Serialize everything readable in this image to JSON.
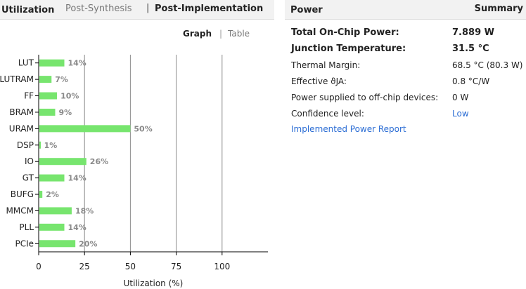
{
  "utilization": {
    "title": "Utilization",
    "tabs": {
      "post_synthesis": "Post-Synthesis",
      "separator": "|",
      "post_implementation": "Post-Implementation"
    },
    "view_toggle": {
      "graph": "Graph",
      "separator": "|",
      "table": "Table"
    }
  },
  "power": {
    "title": "Power",
    "summary": "Summary",
    "rows": [
      {
        "label": "Total On-Chip Power:",
        "value": "7.889 W"
      },
      {
        "label": "Junction Temperature:",
        "value": "31.5 °C"
      },
      {
        "label": "Thermal Margin:",
        "value": "68.5 °C (80.3 W)"
      },
      {
        "label": "Effective ϑJA:",
        "value": "0.8 °C/W"
      },
      {
        "label": "Power supplied to off-chip devices:",
        "value": "0 W"
      },
      {
        "label": "Confidence level:",
        "value": "Low"
      }
    ],
    "report_link": "Implemented Power Report"
  },
  "chart_data": {
    "type": "bar",
    "orientation": "horizontal",
    "categories": [
      "LUT",
      "LUTRAM",
      "FF",
      "BRAM",
      "URAM",
      "DSP",
      "IO",
      "GT",
      "BUFG",
      "MMCM",
      "PLL",
      "PCIe"
    ],
    "values": [
      14,
      7,
      10,
      9,
      50,
      1,
      26,
      14,
      2,
      18,
      14,
      20
    ],
    "value_labels": [
      "14%",
      "7%",
      "10%",
      "9%",
      "50%",
      "1%",
      "26%",
      "14%",
      "2%",
      "18%",
      "14%",
      "20%"
    ],
    "xlabel": "Utilization (%)",
    "ylabel": "",
    "xlim": [
      0,
      125
    ],
    "xticks": [
      0,
      25,
      50,
      75,
      100
    ],
    "xtick_labels": [
      "0",
      "25",
      "50",
      "75",
      "100"
    ],
    "grid": true,
    "bar_color": "#77e56e"
  }
}
